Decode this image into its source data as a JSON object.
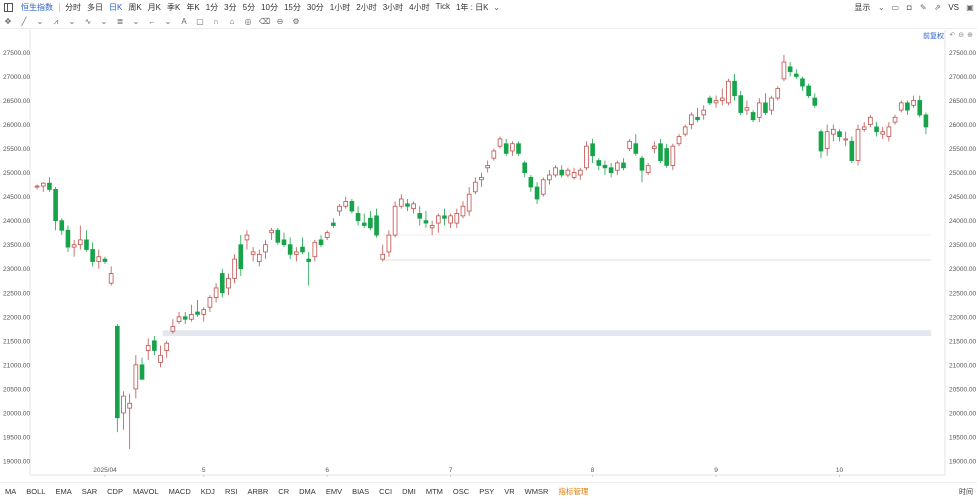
{
  "toolbar": {
    "symbol": "恒生指数",
    "periods": [
      "分时",
      "多日",
      "日K",
      "周K",
      "月K",
      "季K",
      "年K",
      "1分",
      "3分",
      "5分",
      "10分",
      "15分",
      "30分",
      "1小时",
      "2小时",
      "3小时",
      "4小时",
      "Tick",
      "1年 : 日K"
    ],
    "active_period": "日K",
    "display_label": "显示",
    "right_text": "VS"
  },
  "restore_label": "前复权",
  "indicators": [
    "MA",
    "BOLL",
    "EMA",
    "SAR",
    "CDP",
    "MAVOL",
    "MACD",
    "KDJ",
    "RSI",
    "ARBR",
    "CR",
    "DMA",
    "EMV",
    "BIAS",
    "CCI",
    "DMI",
    "MTM",
    "OSC",
    "PSY",
    "VR",
    "WMSR"
  ],
  "indicator_manage_label": "指标管理",
  "timezone_label": "时间",
  "colors": {
    "up": "#c0504d",
    "down": "#16a34a",
    "accent": "#2a62c9",
    "manage": "#e07a00"
  },
  "chart_data": {
    "type": "candlestick",
    "ylim": [
      19000,
      27800
    ],
    "y_ticks": [
      "19000.00",
      "19500.00",
      "20000.00",
      "20500.00",
      "21000.00",
      "21500.00",
      "22000.00",
      "22500.00",
      "23000.00",
      "23500.00",
      "24000.00",
      "24500.00",
      "25000.00",
      "25500.00",
      "26000.00",
      "26500.00",
      "27000.00",
      "27500.00"
    ],
    "x_ticks": [
      {
        "label": "2025/04",
        "index": 11
      },
      {
        "label": "5",
        "index": 27
      },
      {
        "label": "6",
        "index": 47
      },
      {
        "label": "7",
        "index": 67
      },
      {
        "label": "8",
        "index": 90
      },
      {
        "label": "9",
        "index": 110
      },
      {
        "label": "10",
        "index": 130
      }
    ],
    "candles": [
      [
        24700,
        24750,
        24650,
        24720
      ],
      [
        24720,
        24800,
        24600,
        24780
      ],
      [
        24780,
        24900,
        24600,
        24650
      ],
      [
        24650,
        24700,
        23800,
        24000
      ],
      [
        24000,
        24050,
        23700,
        23800
      ],
      [
        23800,
        23900,
        23350,
        23450
      ],
      [
        23450,
        23600,
        23250,
        23500
      ],
      [
        23500,
        23900,
        23400,
        23600
      ],
      [
        23600,
        23800,
        23350,
        23400
      ],
      [
        23400,
        23550,
        23050,
        23150
      ],
      [
        23150,
        23400,
        23000,
        23250
      ],
      [
        23200,
        23250,
        23100,
        23150
      ],
      [
        22700,
        23050,
        22650,
        22900
      ],
      [
        21800,
        21850,
        19600,
        19900
      ],
      [
        20000,
        20450,
        19650,
        20350
      ],
      [
        20100,
        20400,
        19250,
        20200
      ],
      [
        20500,
        21200,
        20300,
        21000
      ],
      [
        21000,
        21150,
        20700,
        20700
      ],
      [
        21300,
        21550,
        21100,
        21400
      ],
      [
        21500,
        21600,
        21200,
        21300
      ],
      [
        21050,
        21400,
        20950,
        21200
      ],
      [
        21300,
        21500,
        21150,
        21450
      ],
      [
        21700,
        21950,
        21650,
        21800
      ],
      [
        21900,
        22100,
        21850,
        22000
      ],
      [
        22000,
        22100,
        21850,
        21950
      ],
      [
        21950,
        22250,
        21900,
        22050
      ],
      [
        22100,
        22350,
        22000,
        22050
      ],
      [
        22050,
        22200,
        21900,
        22150
      ],
      [
        22200,
        22450,
        22100,
        22400
      ],
      [
        22400,
        22700,
        22300,
        22600
      ],
      [
        22900,
        23000,
        22400,
        22500
      ],
      [
        22600,
        22900,
        22450,
        22800
      ],
      [
        22800,
        23300,
        22700,
        23200
      ],
      [
        23500,
        23700,
        22850,
        23000
      ],
      [
        23600,
        23800,
        23400,
        23700
      ],
      [
        23300,
        23450,
        23150,
        23350
      ],
      [
        23150,
        23400,
        23050,
        23300
      ],
      [
        23350,
        23600,
        23200,
        23500
      ],
      [
        23750,
        23850,
        23600,
        23800
      ],
      [
        23800,
        23850,
        23500,
        23550
      ],
      [
        23600,
        23750,
        23450,
        23500
      ],
      [
        23500,
        23650,
        23200,
        23300
      ],
      [
        23300,
        23450,
        23150,
        23350
      ],
      [
        23450,
        23650,
        23300,
        23350
      ],
      [
        23200,
        23350,
        22650,
        23150
      ],
      [
        23250,
        23600,
        23150,
        23550
      ],
      [
        23600,
        23700,
        23450,
        23500
      ],
      [
        23650,
        23800,
        23600,
        23750
      ],
      [
        23950,
        24050,
        23850,
        23900
      ],
      [
        24200,
        24350,
        24100,
        24300
      ],
      [
        24300,
        24500,
        24250,
        24400
      ],
      [
        24400,
        24450,
        24150,
        24200
      ],
      [
        24150,
        24300,
        23900,
        24000
      ],
      [
        23950,
        24150,
        23850,
        23900
      ],
      [
        24050,
        24200,
        23800,
        23850
      ],
      [
        24100,
        24250,
        23650,
        23700
      ],
      [
        23200,
        23500,
        23150,
        23300
      ],
      [
        23350,
        23800,
        23250,
        23700
      ],
      [
        23700,
        24400,
        23650,
        24300
      ],
      [
        24300,
        24550,
        24250,
        24450
      ],
      [
        24350,
        24450,
        24200,
        24300
      ],
      [
        24250,
        24400,
        24150,
        24350
      ],
      [
        24150,
        24300,
        23900,
        24050
      ],
      [
        24000,
        24200,
        23850,
        23950
      ],
      [
        23850,
        24000,
        23700,
        23900
      ],
      [
        23950,
        24150,
        23750,
        24100
      ],
      [
        24100,
        24250,
        23900,
        24050
      ],
      [
        23950,
        24150,
        23850,
        24100
      ],
      [
        23950,
        24250,
        23850,
        24150
      ],
      [
        24100,
        24400,
        24050,
        24300
      ],
      [
        24200,
        24700,
        24100,
        24550
      ],
      [
        24600,
        24900,
        24550,
        24800
      ],
      [
        24850,
        25000,
        24700,
        24900
      ],
      [
        25100,
        25250,
        25000,
        25150
      ],
      [
        25300,
        25500,
        25250,
        25450
      ],
      [
        25550,
        25750,
        25500,
        25700
      ],
      [
        25600,
        25700,
        25350,
        25400
      ],
      [
        25450,
        25650,
        25350,
        25600
      ],
      [
        25600,
        25650,
        25350,
        25400
      ],
      [
        25200,
        25250,
        24900,
        25000
      ],
      [
        24900,
        24950,
        24600,
        24700
      ],
      [
        24700,
        24800,
        24350,
        24450
      ],
      [
        24550,
        24900,
        24500,
        24850
      ],
      [
        24850,
        25050,
        24750,
        24950
      ],
      [
        24950,
        25150,
        24900,
        25100
      ],
      [
        25050,
        25150,
        24900,
        24950
      ],
      [
        24950,
        25100,
        24900,
        25050
      ],
      [
        24900,
        25100,
        24850,
        25000
      ],
      [
        24950,
        25100,
        24850,
        25050
      ],
      [
        25100,
        25650,
        25050,
        25550
      ],
      [
        25600,
        25700,
        25200,
        25350
      ],
      [
        25250,
        25300,
        25050,
        25150
      ],
      [
        25150,
        25250,
        24950,
        25100
      ],
      [
        25100,
        25200,
        24900,
        25000
      ],
      [
        25050,
        25250,
        24950,
        25200
      ],
      [
        25200,
        25300,
        25050,
        25100
      ],
      [
        25500,
        25700,
        25450,
        25650
      ],
      [
        25600,
        25800,
        25350,
        25400
      ],
      [
        25300,
        25350,
        24800,
        25050
      ],
      [
        25000,
        25200,
        24950,
        25150
      ],
      [
        25500,
        25650,
        25400,
        25550
      ],
      [
        25600,
        25700,
        25200,
        25250
      ],
      [
        25500,
        25600,
        25100,
        25150
      ],
      [
        25150,
        25600,
        25050,
        25550
      ],
      [
        25600,
        25800,
        25550,
        25750
      ],
      [
        25800,
        26000,
        25750,
        25950
      ],
      [
        26000,
        26250,
        25900,
        26200
      ],
      [
        26150,
        26350,
        26050,
        26100
      ],
      [
        26200,
        26400,
        26100,
        26300
      ],
      [
        26550,
        26600,
        26400,
        26450
      ],
      [
        26450,
        26600,
        26350,
        26500
      ],
      [
        26500,
        26750,
        26400,
        26550
      ],
      [
        26450,
        26950,
        26400,
        26900
      ],
      [
        26900,
        27050,
        26500,
        26600
      ],
      [
        26600,
        26700,
        26200,
        26250
      ],
      [
        26300,
        26500,
        26200,
        26350
      ],
      [
        26250,
        26300,
        26050,
        26100
      ],
      [
        26150,
        26550,
        26050,
        26450
      ],
      [
        26450,
        26650,
        26200,
        26250
      ],
      [
        26300,
        26600,
        26200,
        26550
      ],
      [
        26550,
        26800,
        26500,
        26750
      ],
      [
        26950,
        27450,
        26900,
        27300
      ],
      [
        27200,
        27300,
        27000,
        27100
      ],
      [
        27050,
        27150,
        26950,
        27000
      ],
      [
        26950,
        27000,
        26700,
        26800
      ],
      [
        26800,
        26850,
        26550,
        26600
      ],
      [
        26550,
        26650,
        26350,
        26400
      ],
      [
        25850,
        25900,
        25300,
        25450
      ],
      [
        25500,
        26000,
        25350,
        25850
      ],
      [
        25800,
        26000,
        25650,
        25900
      ],
      [
        25850,
        25900,
        25650,
        25750
      ],
      [
        25700,
        25850,
        25550,
        25700
      ],
      [
        25650,
        25750,
        25200,
        25250
      ],
      [
        25250,
        26000,
        25150,
        25900
      ],
      [
        25900,
        26050,
        25850,
        25950
      ],
      [
        26000,
        26200,
        25950,
        26150
      ],
      [
        25950,
        26050,
        25750,
        25850
      ],
      [
        25800,
        25950,
        25700,
        25850
      ],
      [
        25750,
        26050,
        25650,
        25950
      ],
      [
        26050,
        26200,
        26000,
        26150
      ],
      [
        26300,
        26500,
        26250,
        26450
      ],
      [
        26450,
        26500,
        26200,
        26300
      ],
      [
        26400,
        26600,
        26350,
        26500
      ],
      [
        26500,
        26600,
        26150,
        26200
      ],
      [
        26200,
        26250,
        25800,
        25950
      ]
    ]
  }
}
